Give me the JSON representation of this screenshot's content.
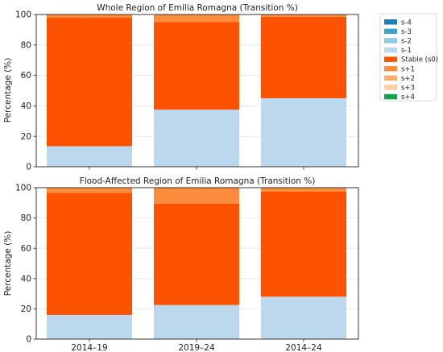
{
  "chart_data": [
    {
      "type": "bar",
      "stacked": true,
      "title": "Whole Region of Emilia Romagna (Transition %)",
      "ylabel": "Percentage (%)",
      "xlabel": "",
      "ylim": [
        0,
        100
      ],
      "yticks": [
        0,
        20,
        40,
        60,
        80,
        100
      ],
      "grid": true,
      "categories": [
        "2014–19",
        "2019–24",
        "2014–24"
      ],
      "series": [
        {
          "name": "s-4",
          "values": [
            0,
            0,
            0
          ]
        },
        {
          "name": "s-3",
          "values": [
            0,
            0,
            0
          ]
        },
        {
          "name": "s-2",
          "values": [
            0,
            0,
            0
          ]
        },
        {
          "name": "s-1",
          "values": [
            13.5,
            37.5,
            45
          ]
        },
        {
          "name": "Stable (s0)",
          "values": [
            84.5,
            57.5,
            53.5
          ]
        },
        {
          "name": "s+1",
          "values": [
            2,
            5,
            1.5
          ]
        },
        {
          "name": "s+2",
          "values": [
            0,
            0,
            0
          ]
        },
        {
          "name": "s+3",
          "values": [
            0,
            0,
            0
          ]
        },
        {
          "name": "s+4",
          "values": [
            0,
            0,
            0
          ]
        }
      ]
    },
    {
      "type": "bar",
      "stacked": true,
      "title": "Flood-Affected Region of Emilia Romagna (Transition %)",
      "ylabel": "Percentage (%)",
      "xlabel": "",
      "ylim": [
        0,
        100
      ],
      "yticks": [
        0,
        20,
        40,
        60,
        80,
        100
      ],
      "grid": true,
      "categories": [
        "2014–19",
        "2019–24",
        "2014–24"
      ],
      "series": [
        {
          "name": "s-4",
          "values": [
            0,
            0,
            0
          ]
        },
        {
          "name": "s-3",
          "values": [
            0,
            0,
            0
          ]
        },
        {
          "name": "s-2",
          "values": [
            0,
            0,
            0
          ]
        },
        {
          "name": "s-1",
          "values": [
            16,
            22.5,
            28
          ]
        },
        {
          "name": "Stable (s0)",
          "values": [
            80.5,
            67,
            69.5
          ]
        },
        {
          "name": "s+1",
          "values": [
            3.5,
            10.5,
            2.5
          ]
        },
        {
          "name": "s+2",
          "values": [
            0,
            0,
            0
          ]
        },
        {
          "name": "s+3",
          "values": [
            0,
            0,
            0
          ]
        },
        {
          "name": "s+4",
          "values": [
            0,
            0,
            0
          ]
        }
      ]
    }
  ],
  "legend": {
    "placement": "right",
    "items": [
      {
        "label": "s-4",
        "color": "#1b7fb8"
      },
      {
        "label": "s-3",
        "color": "#3fa0c9"
      },
      {
        "label": "s-2",
        "color": "#8ccbe0"
      },
      {
        "label": "s-1",
        "color": "#bcd8ec"
      },
      {
        "label": "Stable (s0)",
        "color": "#fd5200"
      },
      {
        "label": "s+1",
        "color": "#fd8c3c"
      },
      {
        "label": "s+2",
        "color": "#fdaa6e"
      },
      {
        "label": "s+3",
        "color": "#fdd09f"
      },
      {
        "label": "s+4",
        "color": "#18a04a"
      }
    ]
  }
}
